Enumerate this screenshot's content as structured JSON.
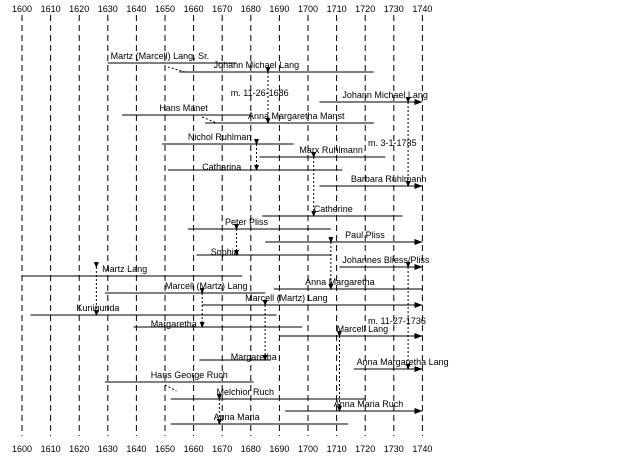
{
  "chart_data": {
    "type": "timeline",
    "axis": {
      "min": 1600,
      "max": 1740,
      "step": 10
    },
    "lifelines": [
      {
        "label": "Martz (Marcell) Lang, Sr.",
        "start": 1630,
        "end": 1675,
        "label_at": 1631
      },
      {
        "label": "Johann Michael Lang",
        "start": 1655,
        "end": 1723,
        "label_at": 1667
      },
      {
        "label": "Johann Michael Lang",
        "start": 1704,
        "end": 1740,
        "arrow": true,
        "label_at": 1712
      },
      {
        "label": "Hans Manet",
        "start": 1635,
        "end": 1680,
        "label_at": 1648
      },
      {
        "label": "Anna Margaretha Manst",
        "start": 1664,
        "end": 1723,
        "label_at": 1679
      },
      {
        "label": "Nichol Ruhlman",
        "start": 1649,
        "end": 1695,
        "label_at": 1658
      },
      {
        "label": "Marx Ruhlmann",
        "start": 1683,
        "end": 1727,
        "label_at": 1697
      },
      {
        "label": "Catharina",
        "start": 1651,
        "end": 1712,
        "label_at": 1663
      },
      {
        "label": "Barbara Ruhlmann",
        "start": 1704,
        "end": 1740,
        "arrow": true,
        "label_at": 1715
      },
      {
        "label": "Catherine",
        "start": 1684,
        "end": 1733,
        "label_at": 1702
      },
      {
        "label": "Peter Pliss",
        "start": 1658,
        "end": 1708,
        "label_at": 1671
      },
      {
        "label": "Paul Pliss",
        "start": 1685,
        "end": 1740,
        "arrow": true,
        "label_at": 1713
      },
      {
        "label": "Sophia",
        "start": 1661,
        "end": 1708,
        "label_at": 1666
      },
      {
        "label": "Johannes Bliess/Pliss",
        "start": 1711,
        "end": 1740,
        "arrow": true,
        "label_at": 1712
      },
      {
        "label": "Martz Lang",
        "start": 1600,
        "end": 1677,
        "label_at": 1628
      },
      {
        "label": "Anna Margaretha",
        "start": 1688,
        "end": 1740,
        "label_at": 1699
      },
      {
        "label": "Marcell (Martz) Lang",
        "start": 1629,
        "end": 1685,
        "label_at": 1650
      },
      {
        "label": "Marcell (Martz) Lang",
        "start": 1663,
        "end": 1740,
        "arrow": true,
        "label_at": 1678
      },
      {
        "label": "Kunigunda",
        "start": 1603,
        "end": 1689,
        "label_at": 1619
      },
      {
        "label": "Margaretha",
        "start": 1639,
        "end": 1698,
        "label_at": 1645
      },
      {
        "label": "Marcell Lang",
        "start": 1690,
        "end": 1740,
        "arrow": true,
        "label_at": 1710
      },
      {
        "label": "Margaretha",
        "start": 1662,
        "end": 1687,
        "label_at": 1673
      },
      {
        "label": "Anna Margaretha Lang",
        "start": 1716,
        "end": 1740,
        "arrow": true,
        "label_at": 1717
      },
      {
        "label": "Hans George Ruch",
        "start": 1629,
        "end": 1681,
        "label_at": 1645
      },
      {
        "label": "Melchior Ruch",
        "start": 1652,
        "end": 1720,
        "label_at": 1668
      },
      {
        "label": "Anna Maria Ruch",
        "start": 1692,
        "end": 1740,
        "arrow": true,
        "label_at": 1709
      },
      {
        "label": "Anna Maria",
        "start": 1652,
        "end": 1714,
        "label_at": 1667
      }
    ],
    "marriages": [
      {
        "label": "m. 11-26-1686",
        "year": 1686,
        "label_at": 1673
      },
      {
        "label": "m. 3-1-1735",
        "year": 1735,
        "label_at": 1721
      },
      {
        "label": "m. 11-27-1736",
        "year": 1736,
        "label_at": 1721
      }
    ]
  }
}
